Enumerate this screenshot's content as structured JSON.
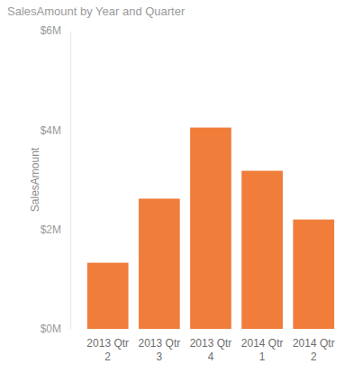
{
  "chart_data": {
    "type": "bar",
    "title": "SalesAmount by Year and Quarter",
    "y_label": "SalesAmount",
    "categories": [
      "2013 Qtr 2",
      "2013 Qtr 3",
      "2013 Qtr 4",
      "2014 Qtr 1",
      "2014 Qtr 2"
    ],
    "values": [
      1330000,
      2620000,
      4050000,
      3180000,
      2200000
    ],
    "color": "#f07d3a",
    "ylim": [
      0,
      6000000
    ],
    "yticks": [
      {
        "value": 0,
        "label": "$0M"
      },
      {
        "value": 2000000,
        "label": "$2M"
      },
      {
        "value": 4000000,
        "label": "$4M"
      },
      {
        "value": 6000000,
        "label": "$6M"
      }
    ],
    "grid": false
  }
}
